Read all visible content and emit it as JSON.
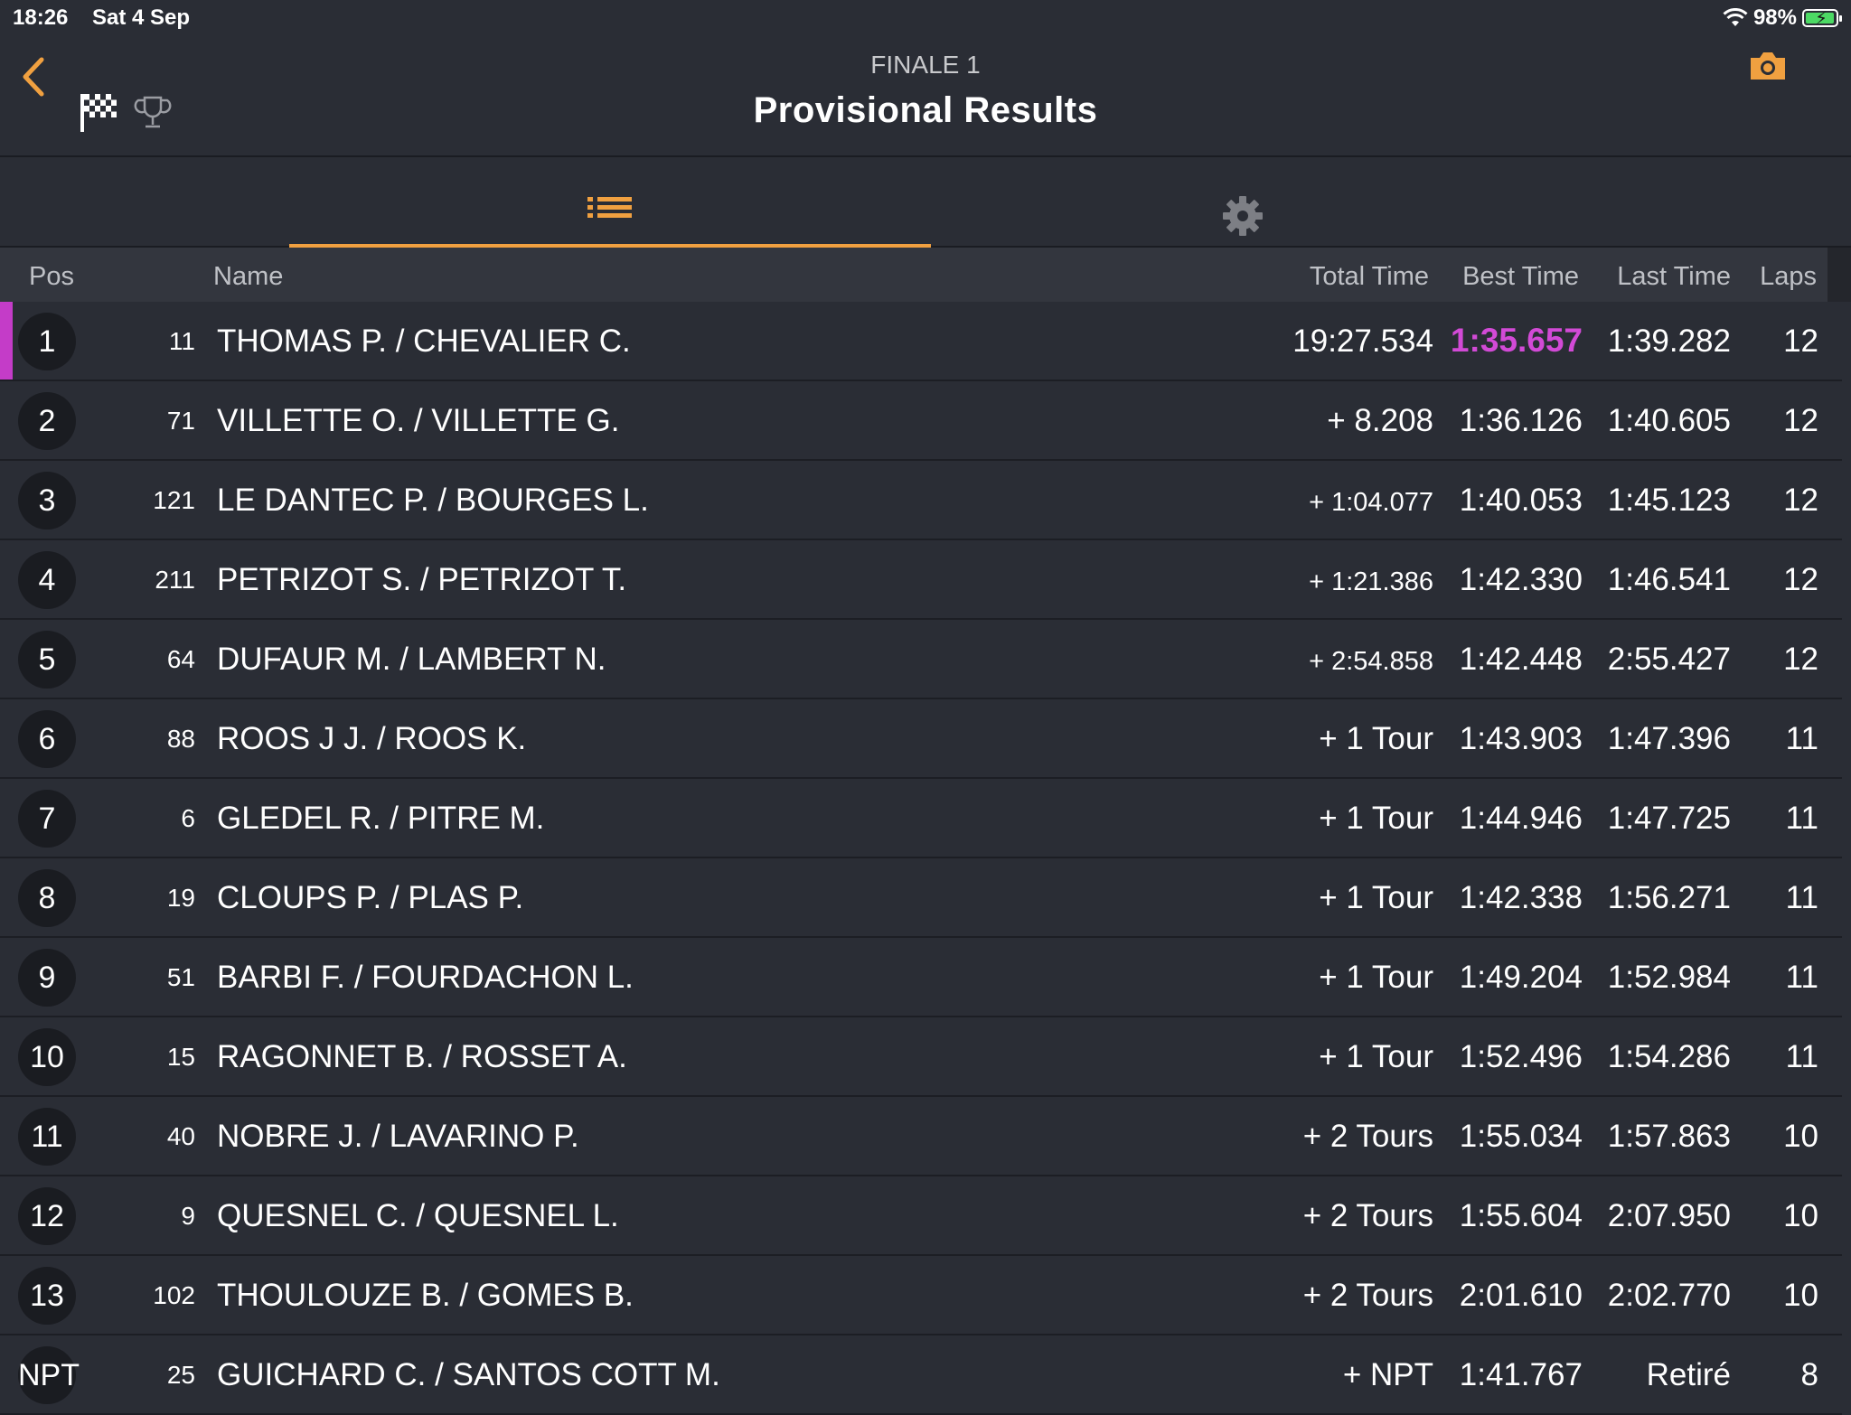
{
  "status_bar": {
    "time": "18:26",
    "date": "Sat 4 Sep",
    "battery": "98%"
  },
  "header": {
    "subtitle": "FINALE 1",
    "title": "Provisional Results"
  },
  "columns": {
    "pos": "Pos",
    "name": "Name",
    "total": "Total Time",
    "best": "Best Time",
    "last": "Last Time",
    "laps": "Laps"
  },
  "colors": {
    "accent": "#f0a040",
    "fastest": "#d24ad6",
    "background": "#2a2d35"
  },
  "rows": [
    {
      "pos": "1",
      "num": "11",
      "name": "THOMAS P. / CHEVALIER C.",
      "total": "19:27.534",
      "best": "1:35.657",
      "last": "1:39.282",
      "laps": "12",
      "fastest": true
    },
    {
      "pos": "2",
      "num": "71",
      "name": "VILLETTE O. / VILLETTE G.",
      "total": "+ 8.208",
      "best": "1:36.126",
      "last": "1:40.605",
      "laps": "12"
    },
    {
      "pos": "3",
      "num": "121",
      "name": "LE DANTEC P. / BOURGES L.",
      "total": "+ 1:04.077",
      "best": "1:40.053",
      "last": "1:45.123",
      "laps": "12",
      "small": true
    },
    {
      "pos": "4",
      "num": "211",
      "name": "PETRIZOT S. / PETRIZOT T.",
      "total": "+ 1:21.386",
      "best": "1:42.330",
      "last": "1:46.541",
      "laps": "12",
      "small": true
    },
    {
      "pos": "5",
      "num": "64",
      "name": "DUFAUR M. / LAMBERT N.",
      "total": "+ 2:54.858",
      "best": "1:42.448",
      "last": "2:55.427",
      "laps": "12",
      "small": true
    },
    {
      "pos": "6",
      "num": "88",
      "name": "ROOS J J. / ROOS K.",
      "total": "+ 1 Tour",
      "best": "1:43.903",
      "last": "1:47.396",
      "laps": "11"
    },
    {
      "pos": "7",
      "num": "6",
      "name": "GLEDEL R. / PITRE M.",
      "total": "+ 1 Tour",
      "best": "1:44.946",
      "last": "1:47.725",
      "laps": "11"
    },
    {
      "pos": "8",
      "num": "19",
      "name": "CLOUPS P. / PLAS P.",
      "total": "+ 1 Tour",
      "best": "1:42.338",
      "last": "1:56.271",
      "laps": "11"
    },
    {
      "pos": "9",
      "num": "51",
      "name": "BARBI F. / FOURDACHON L.",
      "total": "+ 1 Tour",
      "best": "1:49.204",
      "last": "1:52.984",
      "laps": "11"
    },
    {
      "pos": "10",
      "num": "15",
      "name": "RAGONNET B. / ROSSET A.",
      "total": "+ 1 Tour",
      "best": "1:52.496",
      "last": "1:54.286",
      "laps": "11"
    },
    {
      "pos": "11",
      "num": "40",
      "name": "NOBRE J. / LAVARINO P.",
      "total": "+ 2 Tours",
      "best": "1:55.034",
      "last": "1:57.863",
      "laps": "10"
    },
    {
      "pos": "12",
      "num": "9",
      "name": "QUESNEL C. / QUESNEL L.",
      "total": "+ 2 Tours",
      "best": "1:55.604",
      "last": "2:07.950",
      "laps": "10"
    },
    {
      "pos": "13",
      "num": "102",
      "name": "THOULOUZE B. / GOMES B.",
      "total": "+ 2 Tours",
      "best": "2:01.610",
      "last": "2:02.770",
      "laps": "10"
    },
    {
      "pos": "NPT",
      "num": "25",
      "name": "GUICHARD C. / SANTOS COTT M.",
      "total": "+ NPT",
      "best": "1:41.767",
      "last": "Retiré",
      "laps": "8"
    }
  ]
}
